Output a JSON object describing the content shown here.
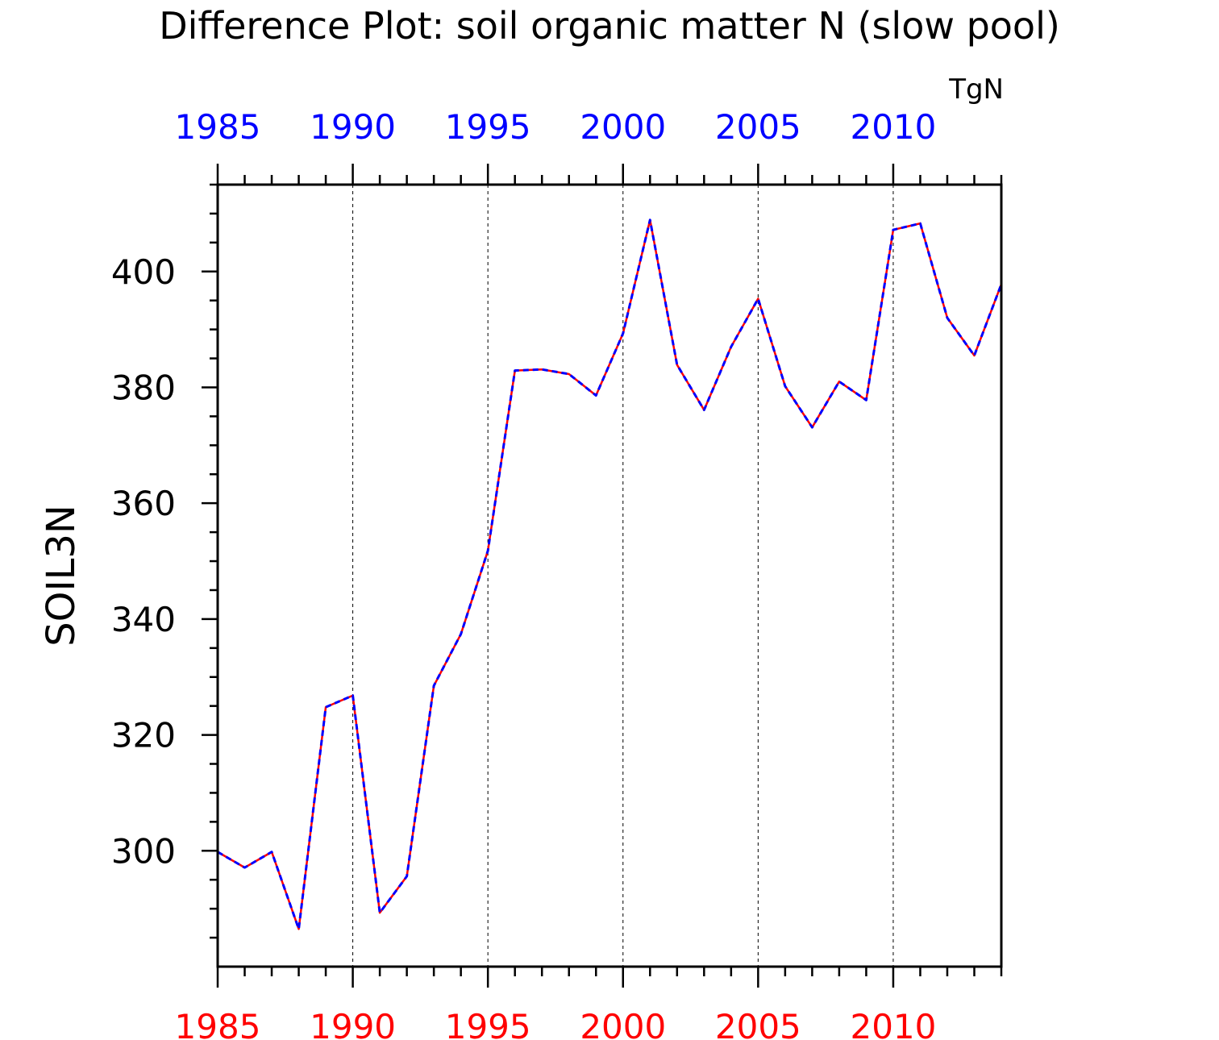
{
  "chart_data": {
    "type": "line",
    "title": "Difference Plot: soil organic matter N (slow pool)",
    "ylabel": "SOIL3N",
    "units": "TgN",
    "xlabel": "",
    "xlim": [
      1985,
      2014
    ],
    "ylim": [
      280,
      415
    ],
    "x_ticks": [
      1985,
      1990,
      1995,
      2000,
      2005,
      2010
    ],
    "x_tick_labels_top": [
      "1985",
      "1990",
      "1995",
      "2000",
      "2005",
      "2010"
    ],
    "x_tick_labels_bottom": [
      "1985",
      "1990",
      "1995",
      "2000",
      "2005",
      "2010"
    ],
    "y_ticks": [
      300,
      320,
      340,
      360,
      380,
      400
    ],
    "y_tick_labels": [
      "300",
      "320",
      "340",
      "360",
      "380",
      "400"
    ],
    "grid": "vertical dashed at major x ticks",
    "x": [
      1985,
      1986,
      1987,
      1988,
      1989,
      1990,
      1991,
      1992,
      1993,
      1994,
      1995,
      1996,
      1997,
      1998,
      1999,
      2000,
      2001,
      2002,
      2003,
      2004,
      2005,
      2006,
      2007,
      2008,
      2009,
      2010,
      2011,
      2012,
      2013,
      2014
    ],
    "series": [
      {
        "color": "#ff0000",
        "style": "solid",
        "axis": "bottom",
        "values": [
          299.8,
          297.1,
          299.8,
          286.5,
          324.8,
          326.8,
          289.3,
          295.6,
          328.5,
          337.4,
          351.8,
          382.9,
          383.1,
          382.3,
          378.6,
          389.3,
          408.9,
          383.9,
          376.1,
          387.0,
          395.3,
          380.2,
          373.1,
          381.0,
          377.8,
          407.2,
          408.3,
          392.0,
          385.5,
          397.8
        ]
      },
      {
        "color": "#0000ff",
        "style": "dashed",
        "axis": "top",
        "values": [
          299.8,
          297.1,
          299.8,
          286.5,
          324.8,
          326.8,
          289.3,
          295.6,
          328.5,
          337.4,
          351.8,
          382.9,
          383.1,
          382.3,
          378.6,
          389.3,
          408.9,
          383.9,
          376.1,
          387.0,
          395.3,
          380.2,
          373.1,
          381.0,
          377.8,
          407.2,
          408.3,
          392.0,
          385.5,
          397.8
        ]
      }
    ]
  }
}
